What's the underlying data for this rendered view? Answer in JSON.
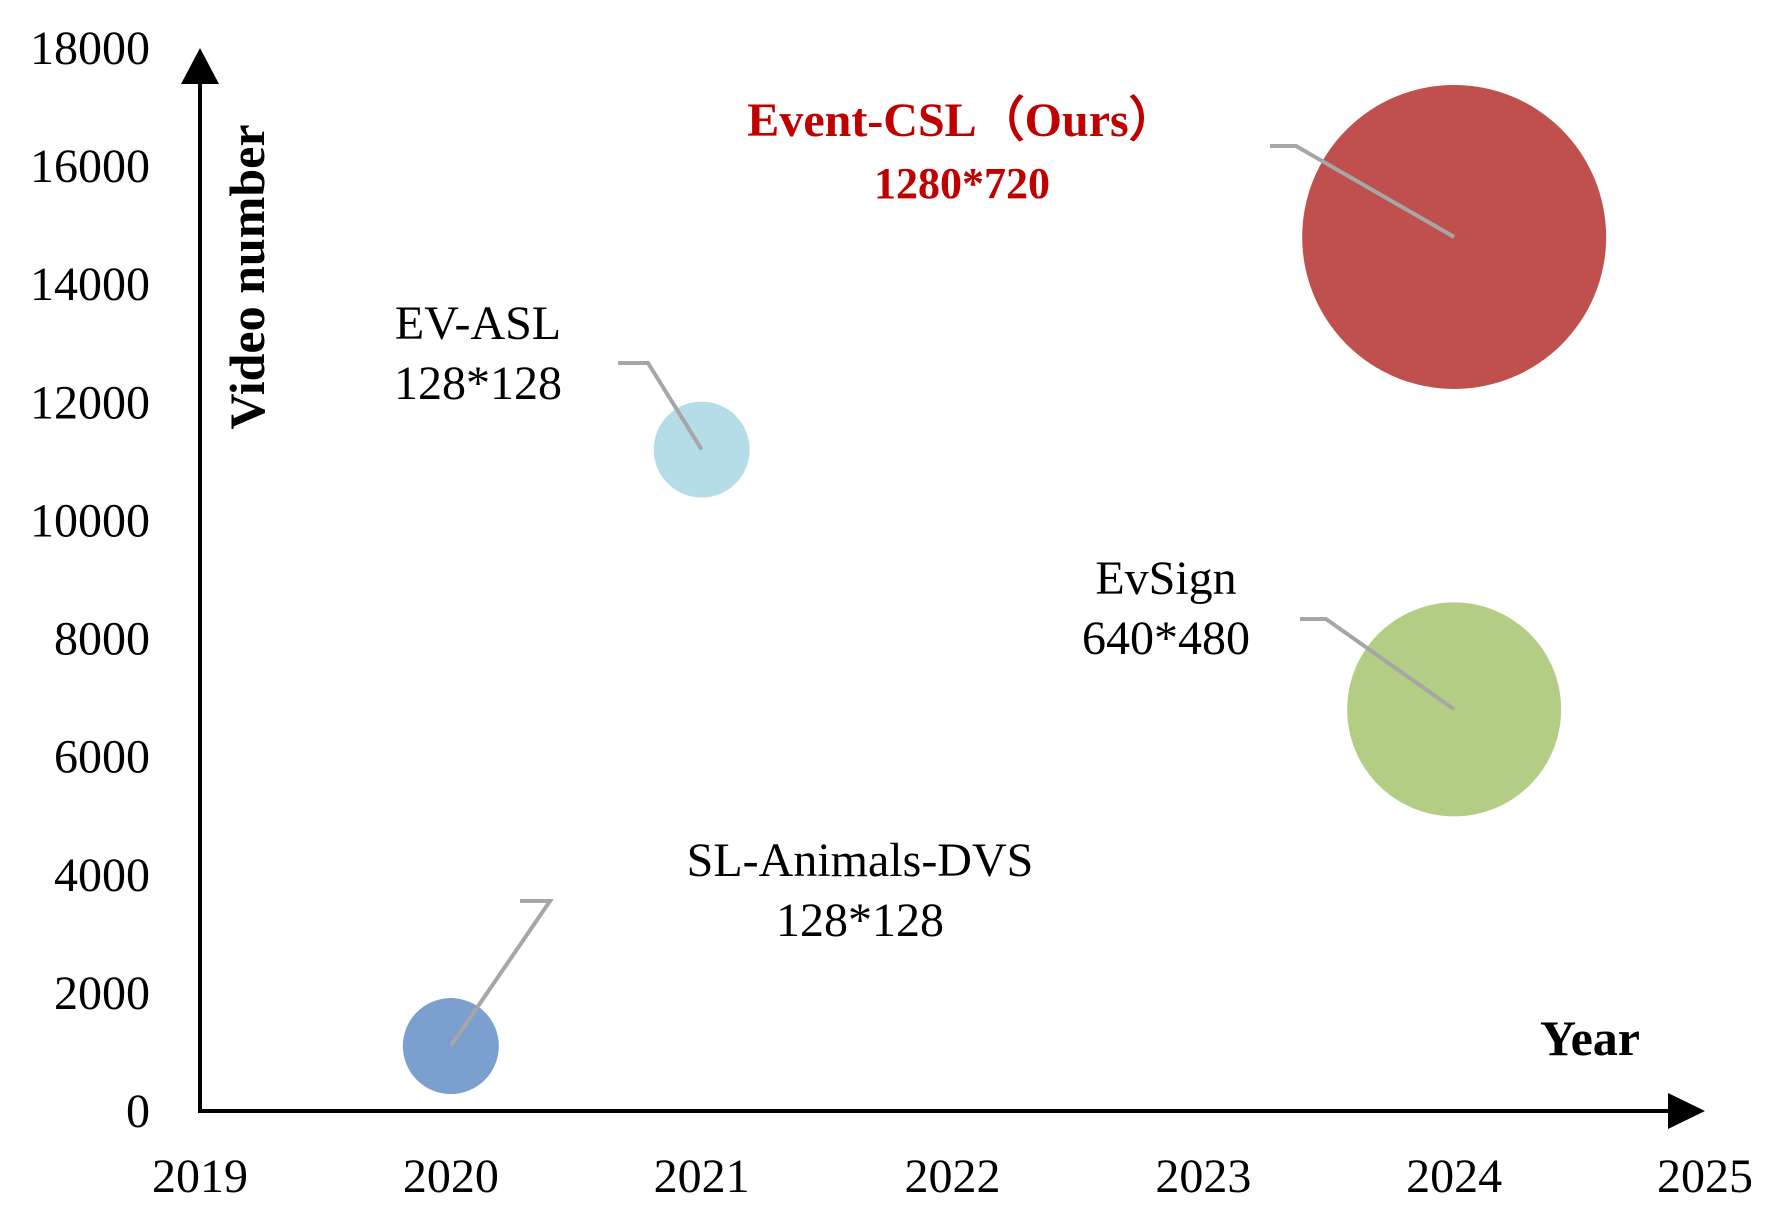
{
  "chart_data": {
    "type": "scatter",
    "subtype": "bubble",
    "xlabel": "Year",
    "ylabel": "Video number",
    "xlim": [
      2019,
      2025
    ],
    "ylim": [
      0,
      18000
    ],
    "x_ticks": [
      "2019",
      "2020",
      "2021",
      "2022",
      "2023",
      "2024",
      "2025"
    ],
    "y_ticks": [
      "0",
      "2000",
      "4000",
      "6000",
      "8000",
      "10000",
      "12000",
      "14000",
      "16000",
      "18000"
    ],
    "grid": false,
    "series": [
      {
        "name": "SL-Animals-DVS",
        "resolution": "128*128",
        "x": 2020,
        "y": 1100,
        "color": "#7ba0cf",
        "highlight": false
      },
      {
        "name": "EV-ASL",
        "resolution": "128*128",
        "x": 2021,
        "y": 11200,
        "color": "#b5dde8",
        "highlight": false
      },
      {
        "name": "EvSign",
        "resolution": "640*480",
        "x": 2024,
        "y": 6800,
        "color": "#b3cd85",
        "highlight": false
      },
      {
        "name": "Event-CSL（Ours）",
        "resolution": "1280*720",
        "x": 2024,
        "y": 14800,
        "color": "#c0504d",
        "highlight": true
      }
    ],
    "leader_line_color": "#a6a6a6",
    "highlight_color": "#c00000"
  }
}
